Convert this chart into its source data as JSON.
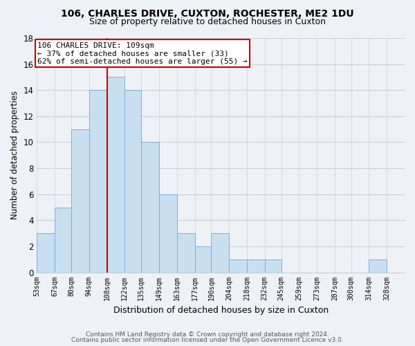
{
  "title1": "106, CHARLES DRIVE, CUXTON, ROCHESTER, ME2 1DU",
  "title2": "Size of property relative to detached houses in Cuxton",
  "xlabel": "Distribution of detached houses by size in Cuxton",
  "ylabel": "Number of detached properties",
  "bin_edges": [
    53,
    67,
    80,
    94,
    108,
    122,
    135,
    149,
    163,
    177,
    190,
    204,
    218,
    232,
    245,
    259,
    273,
    287,
    300,
    314,
    328,
    342
  ],
  "bin_labels": [
    "53sqm",
    "67sqm",
    "80sqm",
    "94sqm",
    "108sqm",
    "122sqm",
    "135sqm",
    "149sqm",
    "163sqm",
    "177sqm",
    "190sqm",
    "204sqm",
    "218sqm",
    "232sqm",
    "245sqm",
    "259sqm",
    "273sqm",
    "287sqm",
    "300sqm",
    "314sqm",
    "328sqm"
  ],
  "counts": [
    3,
    5,
    11,
    14,
    15,
    14,
    10,
    6,
    3,
    2,
    3,
    1,
    1,
    1,
    0,
    0,
    0,
    0,
    0,
    1,
    0
  ],
  "bar_color": "#c8dff0",
  "bar_edge_color": "#7aade0",
  "vline_x": 108,
  "vline_color": "#cc0000",
  "annotation_line1": "106 CHARLES DRIVE: 109sqm",
  "annotation_line2": "← 37% of detached houses are smaller (33)",
  "annotation_line3": "62% of semi-detached houses are larger (55) →",
  "annotation_box_color": "#ffffff",
  "annotation_box_edge_color": "#cc0000",
  "ylim": [
    0,
    18
  ],
  "yticks": [
    0,
    2,
    4,
    6,
    8,
    10,
    12,
    14,
    16,
    18
  ],
  "grid_color": "#c8d0d8",
  "footer1": "Contains HM Land Registry data © Crown copyright and database right 2024.",
  "footer2": "Contains public sector information licensed under the Open Government Licence v3.0.",
  "bg_color": "#eef2f7",
  "title_fontsize": 10,
  "subtitle_fontsize": 9
}
